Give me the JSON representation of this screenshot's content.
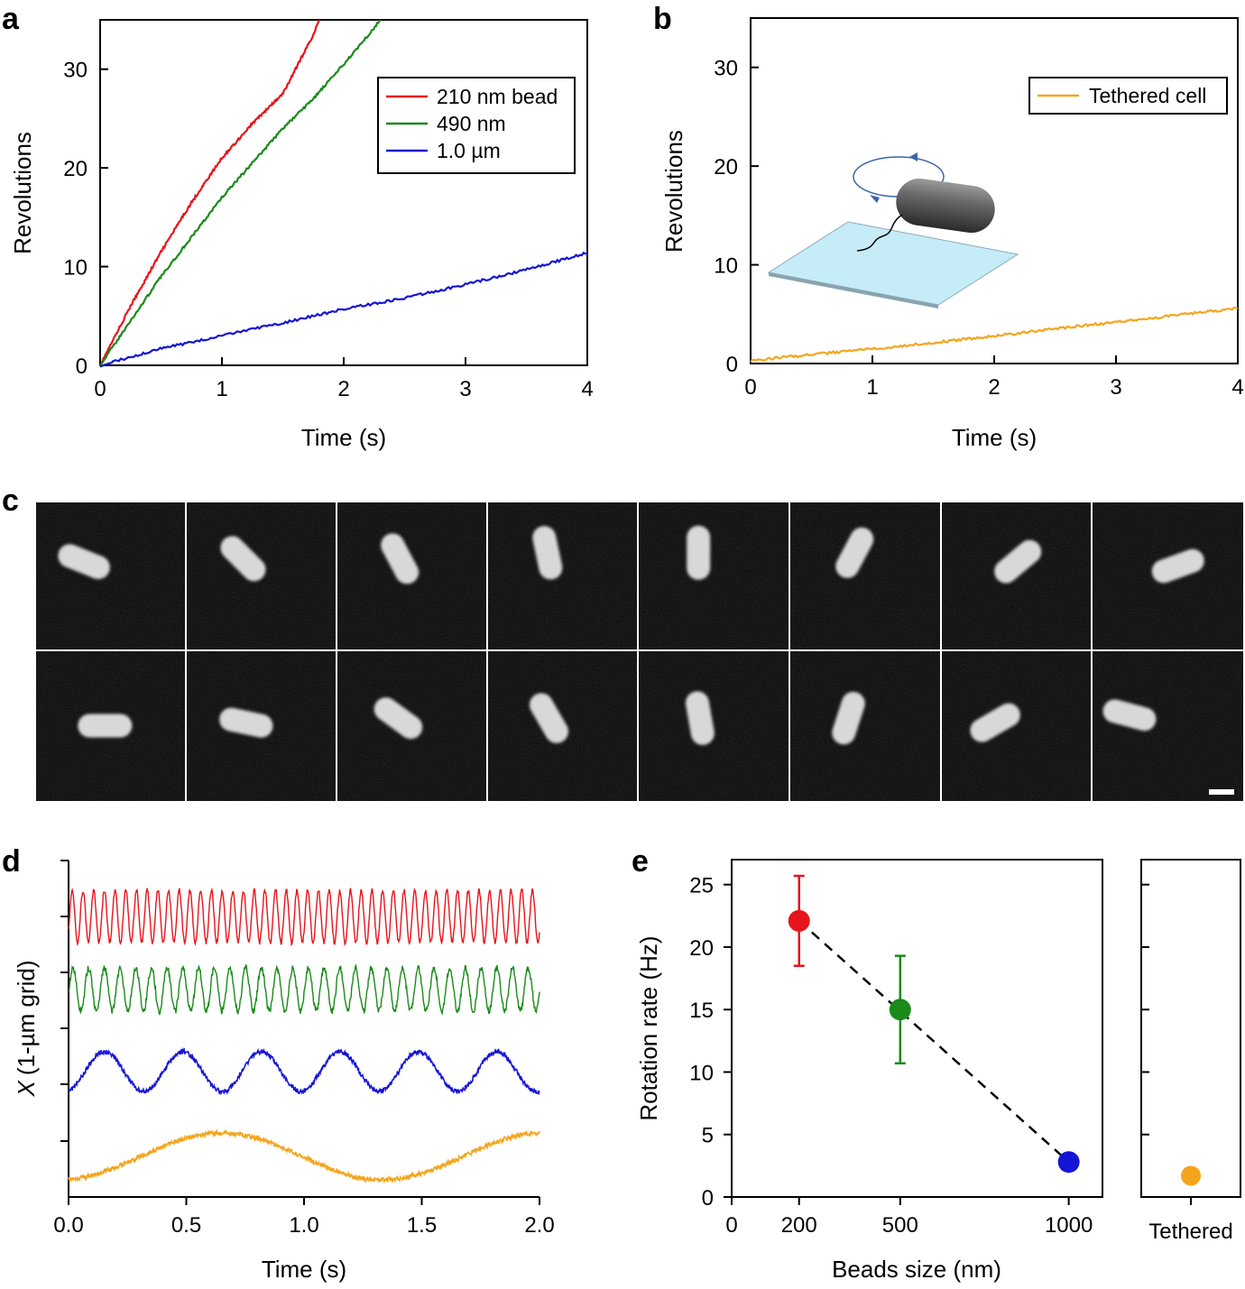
{
  "panels": {
    "a": "a",
    "b": "b",
    "c": "c",
    "d": "d",
    "e": "e"
  },
  "colors": {
    "red": "#e8141b",
    "green": "#1a8a1a",
    "blue": "#1515d6",
    "orange": "#f4a51c"
  },
  "chart_data": [
    {
      "id": "a",
      "type": "line",
      "title": "",
      "xlabel": "Time (s)",
      "ylabel": "Revolutions",
      "xlim": [
        0,
        4
      ],
      "ylim": [
        0,
        35
      ],
      "xticks": [
        "0",
        "1",
        "2",
        "3",
        "4"
      ],
      "yticks": [
        "0",
        "10",
        "20",
        "30"
      ],
      "legend": [
        "210 nm bead",
        "490 nm",
        "1.0 µm"
      ],
      "series": [
        {
          "name": "210 nm bead",
          "color": "#e8141b",
          "x": [
            0,
            0.25,
            0.5,
            0.75,
            1.0,
            1.25,
            1.5,
            1.75,
            1.8
          ],
          "y": [
            0,
            6,
            11.5,
            16.5,
            21,
            24.5,
            27.5,
            33.5,
            35
          ]
        },
        {
          "name": "490 nm",
          "color": "#1a8a1a",
          "x": [
            0,
            0.25,
            0.5,
            0.75,
            1.0,
            1.25,
            1.5,
            1.75,
            2.0,
            2.25,
            2.3
          ],
          "y": [
            0,
            4.5,
            9,
            13,
            17,
            20.5,
            24,
            27,
            30.5,
            34.2,
            35
          ]
        },
        {
          "name": "1.0 µm",
          "color": "#1515d6",
          "x": [
            0,
            0.5,
            1.0,
            1.5,
            2.0,
            2.5,
            3.0,
            3.5,
            4.0
          ],
          "y": [
            0,
            1.7,
            3.0,
            4.3,
            5.7,
            6.8,
            8.2,
            9.7,
            11.4
          ]
        }
      ]
    },
    {
      "id": "b",
      "type": "line",
      "title": "",
      "xlabel": "Time (s)",
      "ylabel": "Revolutions",
      "xlim": [
        0,
        4
      ],
      "ylim": [
        0,
        35
      ],
      "xticks": [
        "0",
        "1",
        "2",
        "3",
        "4"
      ],
      "yticks": [
        "0",
        "10",
        "20",
        "30"
      ],
      "legend": [
        "Tethered cell"
      ],
      "series": [
        {
          "name": "Tethered cell",
          "color": "#f4a51c",
          "x": [
            0,
            0.5,
            1.0,
            1.5,
            2.0,
            2.5,
            3.0,
            3.5,
            4.0
          ],
          "y": [
            0.3,
            0.9,
            1.5,
            2.1,
            2.8,
            3.5,
            4.2,
            4.9,
            5.6
          ]
        }
      ]
    },
    {
      "id": "d",
      "type": "line",
      "title": "",
      "xlabel": "Time (s)",
      "ylabel_italic": "X",
      "ylabel": "(1-µm grid)",
      "xlim": [
        0,
        2
      ],
      "xticks": [
        "0.0",
        "0.5",
        "1.0",
        "1.5",
        "2.0"
      ],
      "series": [
        {
          "name": "210 nm bead",
          "color": "#e8141b",
          "frequency_hz": 22
        },
        {
          "name": "490 nm",
          "color": "#1a8a1a",
          "frequency_hz": 15
        },
        {
          "name": "1.0 µm",
          "color": "#1515d6",
          "frequency_hz": 3
        },
        {
          "name": "Tethered cell",
          "color": "#f4a51c",
          "frequency_hz": 0.73
        }
      ]
    },
    {
      "id": "e",
      "type": "scatter",
      "title": "",
      "xlabel": "Beads size (nm)",
      "ylabel": "Rotation rate (Hz)",
      "xlim": [
        0,
        1100
      ],
      "ylim": [
        0,
        27
      ],
      "xticks": [
        "0",
        "200",
        "500",
        "1000"
      ],
      "yticks": [
        "0",
        "5",
        "10",
        "15",
        "20",
        "25"
      ],
      "points": [
        {
          "x": 200,
          "y": 22.1,
          "err": 3.6,
          "color": "#e8141b"
        },
        {
          "x": 500,
          "y": 15.0,
          "err": 4.3,
          "color": "#1a8a1a"
        },
        {
          "x": 1000,
          "y": 2.8,
          "err": 0.6,
          "color": "#1515d6"
        }
      ],
      "side_panel": {
        "label": "Tethered",
        "y": 1.7,
        "color": "#f4a51c"
      }
    }
  ]
}
